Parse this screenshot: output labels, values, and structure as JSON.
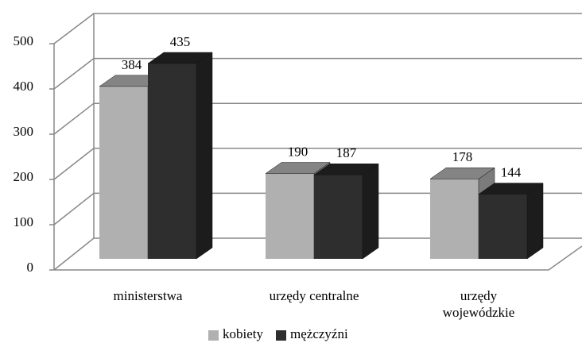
{
  "chart_data": {
    "type": "bar3d",
    "categories": [
      "ministerstwa",
      "urzędy centralne",
      "urzędy wojewódzkie"
    ],
    "series": [
      {
        "name": "kobiety",
        "color": "#b0b0b0",
        "values": [
          384,
          190,
          178
        ]
      },
      {
        "name": "mężczyźni",
        "color": "#2e2e2e",
        "values": [
          435,
          187,
          144
        ]
      }
    ],
    "ylim": [
      0,
      500
    ],
    "yticks": [
      0,
      100,
      200,
      300,
      400,
      500
    ],
    "grid": true,
    "legend": "bottom"
  }
}
